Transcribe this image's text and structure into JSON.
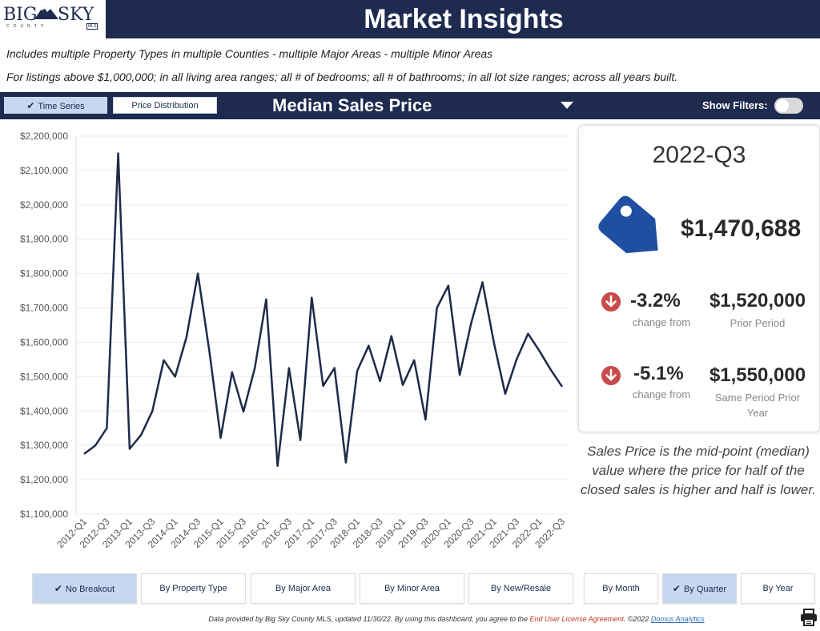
{
  "header": {
    "logo_main_left": "BIG",
    "logo_main_right": "SKY",
    "logo_sub": "COUNTY",
    "logo_mls": "MLS",
    "title": "Market Insights"
  },
  "filters_text": {
    "line1": "Includes multiple Property Types in multiple Counties - multiple Major Areas - multiple Minor Areas",
    "line2": "For listings above $1,000,000; in all living area ranges; all # of bedrooms; all # of bathrooms; in all lot size ranges; across all years built."
  },
  "toolbar": {
    "time_series_label": "Time Series",
    "price_distribution_label": "Price Distribution",
    "measure": "Median Sales Price",
    "show_filters_label": "Show Filters:"
  },
  "kpi": {
    "period": "2022-Q3",
    "value": "$1,470,688",
    "change1_pct": "-3.2%",
    "change1_caption": "change from",
    "change1_value": "$1,520,000",
    "change1_value_caption": "Prior Period",
    "change2_pct": "-5.1%",
    "change2_caption": "change from",
    "change2_value": "$1,550,000",
    "change2_value_caption_l1": "Same Period Prior",
    "change2_value_caption_l2": "Year",
    "description": "Sales Price is the mid-point (median) value where the price for half of the closed sales is higher and half is lower."
  },
  "breakouts": [
    {
      "label": "No Breakout",
      "active": true
    },
    {
      "label": "By Property Type",
      "active": false
    },
    {
      "label": "By Major Area",
      "active": false
    },
    {
      "label": "By Minor Area",
      "active": false
    },
    {
      "label": "By New/Resale",
      "active": false
    }
  ],
  "periods": [
    {
      "label": "By Month",
      "active": false
    },
    {
      "label": "By Quarter",
      "active": true
    },
    {
      "label": "By Year",
      "active": false
    }
  ],
  "footer": {
    "text": "Data provided by Big Sky County MLS, updated 11/30/22.  By using this dashboard, you agree to the ",
    "eula": "End User License Agreement",
    "mid": ".  ©2022 ",
    "domus": "Domus Analytics"
  },
  "colors": {
    "navy": "#1e2b4f",
    "line": "#1f2a48",
    "tag": "#1f4fa0",
    "down": "#c94a4a"
  },
  "chart_data": {
    "type": "line",
    "title": "Median Sales Price",
    "xlabel": "",
    "ylabel": "",
    "ylim": [
      1100000,
      2200000
    ],
    "yticks": [
      "$1,100,000",
      "$1,200,000",
      "$1,300,000",
      "$1,400,000",
      "$1,500,000",
      "$1,600,000",
      "$1,700,000",
      "$1,800,000",
      "$1,900,000",
      "$2,000,000",
      "$2,100,000",
      "$2,200,000"
    ],
    "ytick_values": [
      1100000,
      1200000,
      1300000,
      1400000,
      1500000,
      1600000,
      1700000,
      1800000,
      1900000,
      2000000,
      2100000,
      2200000
    ],
    "x_tick_labels": [
      "2012-Q1",
      "2012-Q3",
      "2013-Q1",
      "2013-Q3",
      "2014-Q1",
      "2014-Q3",
      "2015-Q1",
      "2015-Q3",
      "2016-Q1",
      "2016-Q3",
      "2017-Q1",
      "2017-Q3",
      "2018-Q1",
      "2018-Q3",
      "2019-Q1",
      "2019-Q3",
      "2020-Q1",
      "2020-Q3",
      "2021-Q1",
      "2021-Q3",
      "2022-Q1",
      "2022-Q3"
    ],
    "categories": [
      "2012-Q1",
      "2012-Q2",
      "2012-Q3",
      "2012-Q4",
      "2013-Q1",
      "2013-Q2",
      "2013-Q3",
      "2013-Q4",
      "2014-Q1",
      "2014-Q2",
      "2014-Q3",
      "2014-Q4",
      "2015-Q1",
      "2015-Q2",
      "2015-Q3",
      "2015-Q4",
      "2016-Q1",
      "2016-Q2",
      "2016-Q3",
      "2016-Q4",
      "2017-Q1",
      "2017-Q2",
      "2017-Q3",
      "2017-Q4",
      "2018-Q1",
      "2018-Q2",
      "2018-Q3",
      "2018-Q4",
      "2019-Q1",
      "2019-Q2",
      "2019-Q3",
      "2019-Q4",
      "2020-Q1",
      "2020-Q2",
      "2020-Q3",
      "2020-Q4",
      "2021-Q1",
      "2021-Q2",
      "2021-Q3",
      "2021-Q4",
      "2022-Q1",
      "2022-Q2",
      "2022-Q3"
    ],
    "series": [
      {
        "name": "Median Sales Price",
        "values": [
          1275000,
          1300000,
          1350000,
          2150000,
          1290000,
          1330000,
          1400000,
          1548000,
          1500000,
          1615000,
          1800000,
          1575000,
          1322000,
          1513000,
          1398000,
          1525000,
          1725000,
          1240000,
          1525000,
          1315000,
          1730000,
          1473000,
          1525000,
          1250000,
          1517000,
          1590000,
          1487000,
          1618000,
          1476000,
          1548000,
          1375000,
          1700000,
          1765000,
          1505000,
          1655000,
          1775000,
          1600000,
          1450000,
          1550000,
          1625000,
          1575000,
          1520000,
          1470688
        ]
      }
    ]
  }
}
